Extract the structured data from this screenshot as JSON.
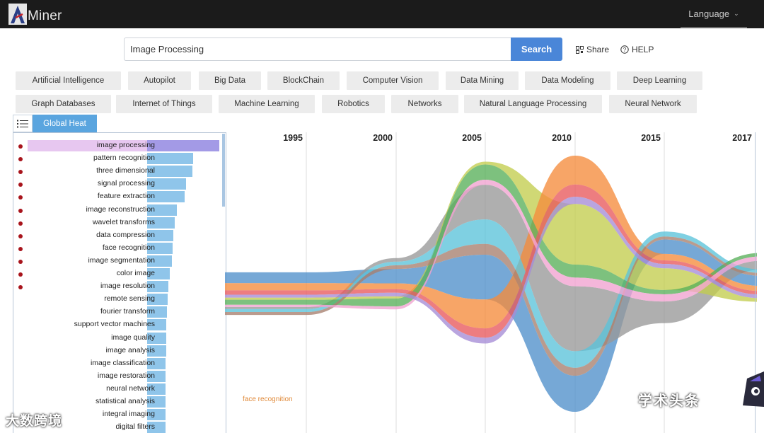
{
  "app": {
    "brand": "Miner",
    "language_label": "Language"
  },
  "search": {
    "value": "Image Processing",
    "button_label": "Search"
  },
  "header_links": {
    "share": "Share",
    "help": "HELP"
  },
  "topics_row1": [
    "Artificial Intelligence",
    "Autopilot",
    "Big Data",
    "BlockChain",
    "Computer Vision",
    "Data Mining",
    "Data Modeling",
    "Deep Learning"
  ],
  "topics_row2": [
    "Graph Databases",
    "Internet of Things",
    "Machine Learning",
    "Robotics",
    "Networks",
    "Natural Language Processing",
    "Neural Network"
  ],
  "panel": {
    "tab_label": "Global Heat"
  },
  "keywords": [
    {
      "label": "image processing",
      "heat": 100,
      "dot": true,
      "selected": true
    },
    {
      "label": "pattern recognition",
      "heat": 64,
      "dot": true
    },
    {
      "label": "three dimensional",
      "heat": 63,
      "dot": true
    },
    {
      "label": "signal processing",
      "heat": 54,
      "dot": true
    },
    {
      "label": "feature extraction",
      "heat": 52,
      "dot": true
    },
    {
      "label": "image reconstruction",
      "heat": 41,
      "dot": true
    },
    {
      "label": "wavelet transforms",
      "heat": 38,
      "dot": true
    },
    {
      "label": "data compression",
      "heat": 36,
      "dot": true
    },
    {
      "label": "face recognition",
      "heat": 35,
      "dot": true
    },
    {
      "label": "image segmentation",
      "heat": 34,
      "dot": true
    },
    {
      "label": "color image",
      "heat": 31,
      "dot": true
    },
    {
      "label": "image resolution",
      "heat": 29,
      "dot": true
    },
    {
      "label": "remote sensing",
      "heat": 28,
      "dot": false
    },
    {
      "label": "fourier transform",
      "heat": 27,
      "dot": false
    },
    {
      "label": "support vector machines",
      "heat": 26,
      "dot": false
    },
    {
      "label": "image quality",
      "heat": 26,
      "dot": false
    },
    {
      "label": "image analysis",
      "heat": 26,
      "dot": false
    },
    {
      "label": "image classification",
      "heat": 25,
      "dot": false
    },
    {
      "label": "image restoration",
      "heat": 25,
      "dot": false
    },
    {
      "label": "neural network",
      "heat": 25,
      "dot": false
    },
    {
      "label": "statistical analysis",
      "heat": 25,
      "dot": false
    },
    {
      "label": "integral imaging",
      "heat": 25,
      "dot": false
    },
    {
      "label": "digital filters",
      "heat": 25,
      "dot": false
    }
  ],
  "chart_data": {
    "type": "area",
    "title": "Global Heat",
    "x_ticks": [
      "1995",
      "2000",
      "2005",
      "2010",
      "2015",
      "2017"
    ],
    "annotation": "face recognition",
    "series": [
      {
        "name": "image processing",
        "color": "#4f8fcb",
        "values": [
          15,
          20,
          62,
          50,
          20,
          14
        ]
      },
      {
        "name": "pattern recognition",
        "color": "#999999",
        "values": [
          3,
          5,
          48,
          90,
          30,
          12
        ]
      },
      {
        "name": "three dimensional",
        "color": "#c3cd4e",
        "values": [
          3,
          3,
          4,
          84,
          30,
          5
        ]
      },
      {
        "name": "signal processing",
        "color": "#f58c3c",
        "values": [
          10,
          8,
          40,
          40,
          9,
          7
        ]
      },
      {
        "name": "feature extraction",
        "color": "#5bc3da",
        "values": [
          4,
          5,
          34,
          23,
          7,
          5
        ]
      },
      {
        "name": "image reconstruction",
        "color": "#59b05a",
        "values": [
          7,
          11,
          21,
          18,
          6,
          5
        ]
      },
      {
        "name": "wavelet transforms",
        "color": "#e8585c",
        "values": [
          6,
          5,
          13,
          17,
          5,
          5
        ]
      },
      {
        "name": "data compression",
        "color": "#a67f6e",
        "values": [
          4,
          5,
          15,
          11,
          4,
          4
        ]
      },
      {
        "name": "face recognition",
        "color": "#f1a1cf",
        "values": [
          3,
          4,
          7,
          12,
          10,
          6
        ]
      },
      {
        "name": "image segmentation",
        "color": "#a58cd6",
        "values": [
          4,
          5,
          8,
          10,
          6,
          5
        ]
      }
    ]
  },
  "watermarks": {
    "left": "大数跨境",
    "right": "学术头条"
  }
}
